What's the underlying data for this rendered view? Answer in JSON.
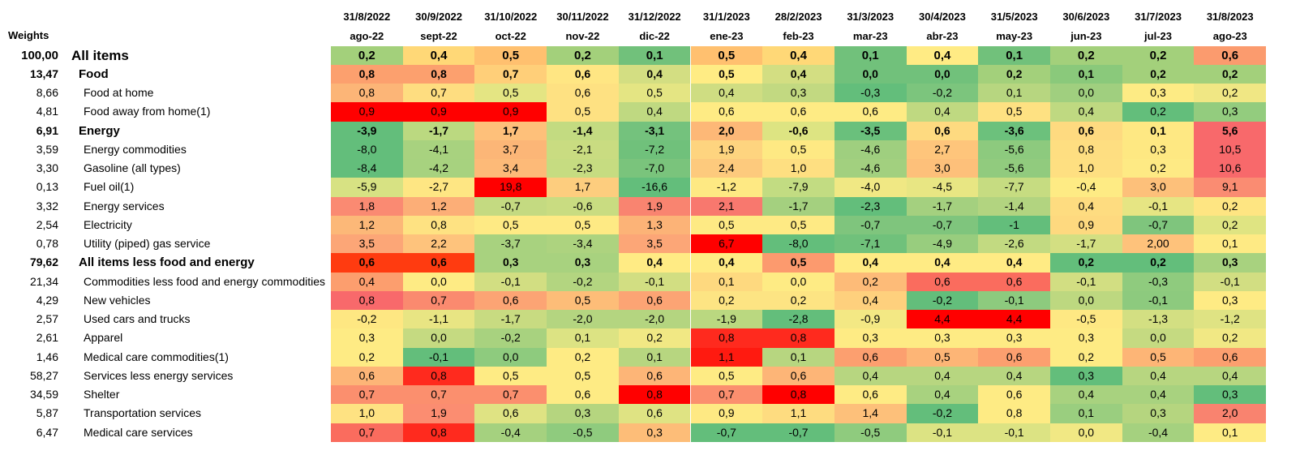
{
  "weights_label": "Weights",
  "dates": [
    "31/8/2022",
    "30/9/2022",
    "31/10/2022",
    "30/11/2022",
    "31/12/2022",
    "31/1/2023",
    "28/2/2023",
    "31/3/2023",
    "30/4/2023",
    "31/5/2023",
    "30/6/2023",
    "31/7/2023",
    "31/8/2023"
  ],
  "months": [
    "ago-22",
    "sept-22",
    "oct-22",
    "nov-22",
    "dic-22",
    "ene-23",
    "feb-23",
    "mar-23",
    "abr-23",
    "may-23",
    "jun-23",
    "jul-23",
    "ago-23"
  ],
  "chart_data": {
    "type": "heatmap",
    "color_scale": {
      "low": "#63be7b",
      "mid": "#ffeb84",
      "high": "#f8696b",
      "extreme_high": "#ff0000"
    },
    "rows": [
      {
        "weight": "100,00",
        "name": "All items",
        "level": 0,
        "values": [
          "0,2",
          "0,4",
          "0,5",
          "0,2",
          "0,1",
          "0,5",
          "0,4",
          "0,1",
          "0,4",
          "0,1",
          "0,2",
          "0,2",
          "0,6"
        ],
        "colors": [
          "#a3d07b",
          "#ffd877",
          "#ffc06f",
          "#a3d07b",
          "#71c17b",
          "#ffc06f",
          "#ffd877",
          "#71c17b",
          "#ffeb84",
          "#71c17b",
          "#a3d07b",
          "#a3d07b",
          "#fb9b6e"
        ]
      },
      {
        "weight": "13,47",
        "name": "Food",
        "level": 1,
        "values": [
          "0,8",
          "0,8",
          "0,7",
          "0,6",
          "0,4",
          "0,5",
          "0,4",
          "0,0",
          "0,0",
          "0,2",
          "0,1",
          "0,2",
          "0,2"
        ],
        "colors": [
          "#fca06e",
          "#fca06e",
          "#ffcf79",
          "#ffe683",
          "#d3de82",
          "#ffec84",
          "#d3de82",
          "#71c17b",
          "#71c17b",
          "#a3d07b",
          "#8ac97b",
          "#a3d07b",
          "#a3d07b"
        ]
      },
      {
        "weight": "8,66",
        "name": "Food at home",
        "level": 2,
        "values": [
          "0,8",
          "0,7",
          "0,5",
          "0,6",
          "0,5",
          "0,4",
          "0,3",
          "-0,3",
          "-0,2",
          "0,1",
          "0,0",
          "0,3",
          "0,2"
        ],
        "colors": [
          "#fcb577",
          "#fedd80",
          "#e4e583",
          "#fee182",
          "#e4e583",
          "#cfdd82",
          "#c2d981",
          "#63be7b",
          "#7cc57d",
          "#b7d680",
          "#a0cf7f",
          "#fdeb84",
          "#f0e784"
        ]
      },
      {
        "weight": "4,81",
        "name": "Food away from home(1)",
        "level": 2,
        "values": [
          "0,9",
          "0,9",
          "0,9",
          "0,5",
          "0,4",
          "0,6",
          "0,6",
          "0,6",
          "0,4",
          "0,5",
          "0,4",
          "0,2",
          "0,3"
        ],
        "colors": [
          "#ff0000",
          "#ff0000",
          "#ff0000",
          "#fee182",
          "#bfd981",
          "#feeb84",
          "#feeb84",
          "#feeb84",
          "#bfd981",
          "#fee182",
          "#bfd981",
          "#63be7b",
          "#93cc7e"
        ]
      },
      {
        "weight": "6,91",
        "name": "Energy",
        "level": 1,
        "values": [
          "-3,9",
          "-1,7",
          "1,7",
          "-1,4",
          "-3,1",
          "2,0",
          "-0,6",
          "-3,5",
          "0,6",
          "-3,6",
          "0,6",
          "0,1",
          "5,6"
        ],
        "colors": [
          "#63be7b",
          "#bbd980",
          "#fec07a",
          "#c3db81",
          "#74c27d",
          "#fdb877",
          "#dde482",
          "#6ac07c",
          "#feda80",
          "#6cc17c",
          "#feda80",
          "#fee883",
          "#f8696b"
        ]
      },
      {
        "weight": "3,59",
        "name": "Energy commodities",
        "level": 2,
        "values": [
          "-8,0",
          "-4,1",
          "3,7",
          "-2,1",
          "-7,2",
          "1,9",
          "0,5",
          "-4,6",
          "2,7",
          "-5,6",
          "0,8",
          "0,3",
          "10,5"
        ],
        "colors": [
          "#63be7b",
          "#a8d27f",
          "#fcb677",
          "#c9dc81",
          "#70c17b",
          "#fed47f",
          "#fee983",
          "#9fcf7f",
          "#fec57b",
          "#8dca7e",
          "#fede81",
          "#fee882",
          "#f8696b"
        ]
      },
      {
        "weight": "3,30",
        "name": "Gasoline (all types)",
        "level": 2,
        "values": [
          "-8,4",
          "-4,2",
          "3,4",
          "-2,3",
          "-7,0",
          "2,4",
          "1,0",
          "-4,6",
          "3,0",
          "-5,6",
          "1,0",
          "0,2",
          "10,6"
        ],
        "colors": [
          "#63be7b",
          "#a7d27f",
          "#fdba78",
          "#c6dc81",
          "#7ac47c",
          "#fdca7d",
          "#fedf81",
          "#a2d07f",
          "#fdc07a",
          "#91cb7e",
          "#fedf81",
          "#feea84",
          "#f8696b"
        ]
      },
      {
        "weight": "0,13",
        "name": "Fuel oil(1)",
        "level": 2,
        "values": [
          "-5,9",
          "-2,7",
          "19,8",
          "1,7",
          "-16,6",
          "-1,2",
          "-7,9",
          "-4,0",
          "-4,5",
          "-7,7",
          "-0,4",
          "3,0",
          "9,1"
        ],
        "colors": [
          "#d7e283",
          "#fee683",
          "#ff0000",
          "#fdcd7e",
          "#63be7b",
          "#fee983",
          "#c2dc82",
          "#f0e884",
          "#e8e683",
          "#c6dc81",
          "#feeb84",
          "#fdc07a",
          "#fa8c72"
        ]
      },
      {
        "weight": "3,32",
        "name": "Energy services",
        "level": 2,
        "values": [
          "1,8",
          "1,2",
          "-0,7",
          "-0,6",
          "1,9",
          "2,1",
          "-1,7",
          "-2,3",
          "-1,7",
          "-1,4",
          "0,4",
          "-0,1",
          "0,2"
        ],
        "colors": [
          "#fa8a72",
          "#fcae77",
          "#c4da81",
          "#c9dc81",
          "#f98470",
          "#f8786e",
          "#a4d07f",
          "#63be7b",
          "#a4d07f",
          "#b2d480",
          "#fedc80",
          "#e6e583",
          "#fee582"
        ]
      },
      {
        "weight": "2,54",
        "name": "Electricity",
        "level": 2,
        "values": [
          "1,2",
          "0,8",
          "0,5",
          "0,5",
          "1,3",
          "0,5",
          "0,5",
          "-0,7",
          "-0,7",
          "-1",
          "0,9",
          "-0,7",
          "0,2"
        ],
        "colors": [
          "#fcb878",
          "#fee282",
          "#feea84",
          "#feea84",
          "#fcb377",
          "#feea84",
          "#feea84",
          "#7fc57d",
          "#7fc57d",
          "#63be7b",
          "#fed97f",
          "#7fc57d",
          "#dfe482"
        ]
      },
      {
        "weight": "0,78",
        "name": "Utility (piped) gas service",
        "level": 2,
        "values": [
          "3,5",
          "2,2",
          "-3,7",
          "-3,4",
          "3,5",
          "6,7",
          "-8,0",
          "-7,1",
          "-4,9",
          "-2,6",
          "-1,7",
          "2,00",
          "0,1"
        ],
        "colors": [
          "#fca677",
          "#fec37c",
          "#a8d27f",
          "#add37f",
          "#fca677",
          "#ff0000",
          "#63be7b",
          "#70c17b",
          "#98cd7e",
          "#c2da81",
          "#d3df82",
          "#fec27b",
          "#feea84"
        ]
      },
      {
        "weight": "79,62",
        "name": "All items less food and energy",
        "level": 1,
        "values": [
          "0,6",
          "0,6",
          "0,3",
          "0,3",
          "0,4",
          "0,4",
          "0,5",
          "0,4",
          "0,4",
          "0,4",
          "0,2",
          "0,2",
          "0,3"
        ],
        "colors": [
          "#ff3b10",
          "#ff3b10",
          "#a8d27f",
          "#a8d27f",
          "#ffeb84",
          "#ffeb84",
          "#fc9a6e",
          "#ffeb84",
          "#ffeb84",
          "#ffeb84",
          "#63be7b",
          "#63be7b",
          "#a8d27f"
        ]
      },
      {
        "weight": "21,34",
        "name": "Commodities less food and energy commodities",
        "level": 2,
        "values": [
          "0,4",
          "0,0",
          "-0,1",
          "-0,2",
          "-0,1",
          "0,1",
          "0,0",
          "0,2",
          "0,6",
          "0,6",
          "-0,1",
          "-0,3",
          "-0,1"
        ],
        "colors": [
          "#fc9e6e",
          "#feeb84",
          "#d2de82",
          "#b3d580",
          "#d2de82",
          "#fed97f",
          "#feeb84",
          "#fdbb78",
          "#fa6c5e",
          "#fa6c5e",
          "#d2de82",
          "#8fcb7e",
          "#d2de82"
        ]
      },
      {
        "weight": "4,29",
        "name": "New vehicles",
        "level": 2,
        "values": [
          "0,8",
          "0,7",
          "0,6",
          "0,5",
          "0,6",
          "0,2",
          "0,2",
          "0,4",
          "-0,2",
          "-0,1",
          "0,0",
          "-0,1",
          "0,3"
        ],
        "colors": [
          "#f8696b",
          "#fa8a6f",
          "#fca474",
          "#fdbd78",
          "#fca474",
          "#fde483",
          "#fde483",
          "#fed07d",
          "#63be7b",
          "#8dca7e",
          "#bdd880",
          "#8dca7e",
          "#feeb84"
        ]
      },
      {
        "weight": "2,57",
        "name": "Used cars and trucks",
        "level": 2,
        "values": [
          "-0,2",
          "-1,1",
          "-1,7",
          "-2,0",
          "-2,0",
          "-1,9",
          "-2,8",
          "-0,9",
          "4,4",
          "4,4",
          "-0,5",
          "-1,3",
          "-1,2"
        ],
        "colors": [
          "#fee782",
          "#e8e583",
          "#c8db81",
          "#b4d580",
          "#b4d580",
          "#bad880",
          "#63be7b",
          "#f3e884",
          "#ff0000",
          "#ff0000",
          "#fee883",
          "#d3df82",
          "#dfe383"
        ]
      },
      {
        "weight": "2,61",
        "name": "Apparel",
        "level": 2,
        "values": [
          "0,3",
          "0,0",
          "-0,2",
          "0,1",
          "0,2",
          "0,8",
          "0,8",
          "0,3",
          "0,3",
          "0,3",
          "0,3",
          "0,0",
          "0,2"
        ],
        "colors": [
          "#feeb84",
          "#c5da81",
          "#a8d27f",
          "#dce383",
          "#f1e884",
          "#ff2a1e",
          "#ff2a1e",
          "#feeb84",
          "#feeb84",
          "#feeb84",
          "#feeb84",
          "#c5da81",
          "#f1e884"
        ]
      },
      {
        "weight": "1,46",
        "name": "Medical care commodities(1)",
        "level": 2,
        "values": [
          "0,2",
          "-0,1",
          "0,0",
          "0,2",
          "0,1",
          "1,1",
          "0,1",
          "0,6",
          "0,5",
          "0,6",
          "0,2",
          "0,5",
          "0,6"
        ],
        "colors": [
          "#feeb84",
          "#63be7b",
          "#8ecb7e",
          "#feeb84",
          "#b7d680",
          "#ff1a10",
          "#b7d680",
          "#fc9f6f",
          "#fdb576",
          "#fc9f6f",
          "#feeb84",
          "#fdb576",
          "#fc9f6f"
        ]
      },
      {
        "weight": "58,27",
        "name": "Services less energy services",
        "level": 2,
        "values": [
          "0,6",
          "0,8",
          "0,5",
          "0,5",
          "0,6",
          "0,5",
          "0,6",
          "0,4",
          "0,4",
          "0,4",
          "0,3",
          "0,4",
          "0,4"
        ],
        "colors": [
          "#fdb577",
          "#ff2a1e",
          "#feeb84",
          "#feeb84",
          "#fdb577",
          "#feeb84",
          "#fdb577",
          "#b7d680",
          "#b7d680",
          "#b7d680",
          "#63be7b",
          "#b7d680",
          "#b7d680"
        ]
      },
      {
        "weight": "34,59",
        "name": "Shelter",
        "level": 2,
        "values": [
          "0,7",
          "0,7",
          "0,7",
          "0,6",
          "0,8",
          "0,7",
          "0,8",
          "0,6",
          "0,4",
          "0,6",
          "0,4",
          "0,4",
          "0,3"
        ],
        "colors": [
          "#fb8f6e",
          "#fb8f6e",
          "#fb8f6e",
          "#feeb84",
          "#ff0000",
          "#fb8f6e",
          "#ff0000",
          "#feeb84",
          "#a8d27f",
          "#feeb84",
          "#a8d27f",
          "#a8d27f",
          "#63be7b"
        ]
      },
      {
        "weight": "5,87",
        "name": "Transportation services",
        "level": 2,
        "values": [
          "1,0",
          "1,9",
          "0,6",
          "0,3",
          "0,6",
          "0,9",
          "1,1",
          "1,4",
          "-0,2",
          "0,8",
          "0,1",
          "0,3",
          "2,0"
        ],
        "colors": [
          "#fee282",
          "#fb8d71",
          "#dfe383",
          "#b5d57f",
          "#dfe383",
          "#fee983",
          "#fedc80",
          "#fdc07a",
          "#63be7b",
          "#feeb84",
          "#9ace7f",
          "#b5d57f",
          "#f9836f"
        ]
      },
      {
        "weight": "6,47",
        "name": "Medical care services",
        "level": 2,
        "values": [
          "0,7",
          "0,8",
          "-0,4",
          "-0,5",
          "0,3",
          "-0,7",
          "-0,7",
          "-0,5",
          "-0,1",
          "-0,1",
          "0,0",
          "-0,4",
          "0,1"
        ],
        "colors": [
          "#fa6c5e",
          "#ff2a1e",
          "#a5d17f",
          "#8fcb7e",
          "#fdbd78",
          "#63be7b",
          "#63be7b",
          "#8fcb7e",
          "#dce383",
          "#dce383",
          "#f1e884",
          "#a5d17f",
          "#feeb84"
        ]
      }
    ]
  }
}
